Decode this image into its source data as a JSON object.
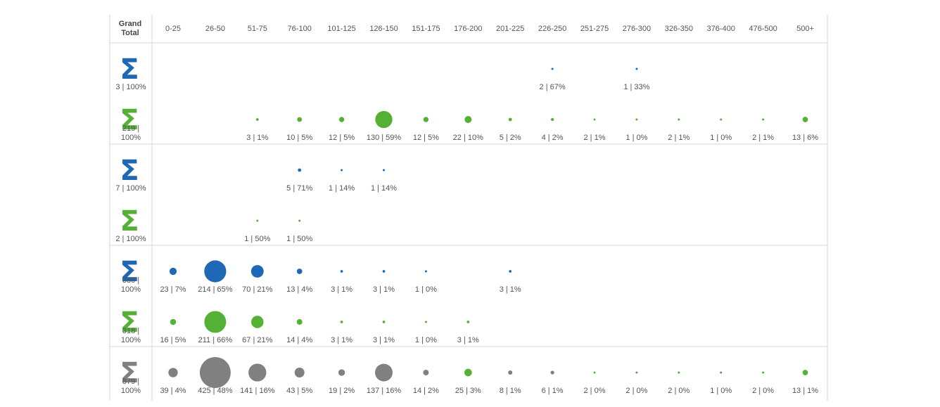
{
  "chart_data": {
    "type": "bubble-matrix",
    "corner_header": [
      "Grand",
      "Total"
    ],
    "columns": [
      "0-25",
      "26-50",
      "51-75",
      "76-100",
      "101-125",
      "126-150",
      "151-175",
      "176-200",
      "201-225",
      "226-250",
      "251-275",
      "276-300",
      "326-350",
      "376-400",
      "476-500",
      "500+"
    ],
    "colors": {
      "blue": "#1f68b5",
      "green": "#55b136",
      "gray": "#808080"
    },
    "groups": [
      {
        "rows": [
          {
            "color": "blue",
            "total_label": [
              "3 | 100%"
            ],
            "cells": [
              {
                "col": "226-250",
                "count": 2,
                "label": "2 | 67%"
              },
              {
                "col": "276-300",
                "count": 1,
                "label": "1 | 33%"
              }
            ]
          },
          {
            "color": "green",
            "total_label": [
              "219 |",
              "100%"
            ],
            "cells": [
              {
                "col": "51-75",
                "count": 3,
                "label": "3 | 1%"
              },
              {
                "col": "76-100",
                "count": 10,
                "label": "10 | 5%"
              },
              {
                "col": "101-125",
                "count": 12,
                "label": "12 | 5%"
              },
              {
                "col": "126-150",
                "count": 130,
                "label": "130 | 59%"
              },
              {
                "col": "151-175",
                "count": 12,
                "label": "12 | 5%"
              },
              {
                "col": "176-200",
                "count": 22,
                "label": "22 | 10%"
              },
              {
                "col": "201-225",
                "count": 5,
                "label": "5 | 2%"
              },
              {
                "col": "226-250",
                "count": 4,
                "label": "4 | 2%"
              },
              {
                "col": "251-275",
                "count": 2,
                "label": "2 | 1%"
              },
              {
                "col": "276-300",
                "count": 1,
                "label": "1 | 0%"
              },
              {
                "col": "326-350",
                "count": 2,
                "label": "2 | 1%"
              },
              {
                "col": "376-400",
                "count": 1,
                "label": "1 | 0%"
              },
              {
                "col": "476-500",
                "count": 2,
                "label": "2 | 1%"
              },
              {
                "col": "500+",
                "count": 13,
                "label": "13 | 6%"
              }
            ]
          }
        ]
      },
      {
        "rows": [
          {
            "color": "blue",
            "total_label": [
              "7 | 100%"
            ],
            "cells": [
              {
                "col": "76-100",
                "count": 5,
                "label": "5 | 71%"
              },
              {
                "col": "101-125",
                "count": 1,
                "label": "1 | 14%"
              },
              {
                "col": "126-150",
                "count": 1,
                "label": "1 | 14%"
              }
            ]
          },
          {
            "color": "green",
            "total_label": [
              "2 | 100%"
            ],
            "cells": [
              {
                "col": "51-75",
                "count": 1,
                "label": "1 | 50%"
              },
              {
                "col": "76-100",
                "count": 1,
                "label": "1 | 50%"
              }
            ]
          }
        ]
      },
      {
        "rows": [
          {
            "color": "blue",
            "total_label": [
              "330 |",
              "100%"
            ],
            "cells": [
              {
                "col": "0-25",
                "count": 23,
                "label": "23 | 7%"
              },
              {
                "col": "26-50",
                "count": 214,
                "label": "214 | 65%"
              },
              {
                "col": "51-75",
                "count": 70,
                "label": "70 | 21%"
              },
              {
                "col": "76-100",
                "count": 13,
                "label": "13 | 4%"
              },
              {
                "col": "101-125",
                "count": 3,
                "label": "3 | 1%"
              },
              {
                "col": "126-150",
                "count": 3,
                "label": "3 | 1%"
              },
              {
                "col": "151-175",
                "count": 1,
                "label": "1 | 0%"
              },
              {
                "col": "201-225",
                "count": 3,
                "label": "3 | 1%"
              }
            ]
          },
          {
            "color": "green",
            "total_label": [
              "318 |",
              "100%"
            ],
            "cells": [
              {
                "col": "0-25",
                "count": 16,
                "label": "16 | 5%"
              },
              {
                "col": "26-50",
                "count": 211,
                "label": "211 | 66%"
              },
              {
                "col": "51-75",
                "count": 67,
                "label": "67 | 21%"
              },
              {
                "col": "76-100",
                "count": 14,
                "label": "14 | 4%"
              },
              {
                "col": "101-125",
                "count": 3,
                "label": "3 | 1%"
              },
              {
                "col": "126-150",
                "count": 3,
                "label": "3 | 1%"
              },
              {
                "col": "151-175",
                "count": 1,
                "label": "1 | 0%"
              },
              {
                "col": "176-200",
                "count": 3,
                "label": "3 | 1%"
              }
            ]
          }
        ]
      },
      {
        "rows": [
          {
            "color": "gray",
            "total_label": [
              "879 |",
              "100%"
            ],
            "cells": [
              {
                "col": "0-25",
                "count": 39,
                "label": "39 | 4%",
                "color": "gray"
              },
              {
                "col": "26-50",
                "count": 425,
                "label": "425 | 48%",
                "color": "gray"
              },
              {
                "col": "51-75",
                "count": 141,
                "label": "141 | 16%",
                "color": "gray"
              },
              {
                "col": "76-100",
                "count": 43,
                "label": "43 | 5%",
                "color": "gray"
              },
              {
                "col": "101-125",
                "count": 19,
                "label": "19 | 2%",
                "color": "gray"
              },
              {
                "col": "126-150",
                "count": 137,
                "label": "137 | 16%",
                "color": "gray"
              },
              {
                "col": "151-175",
                "count": 14,
                "label": "14 | 2%",
                "color": "gray"
              },
              {
                "col": "176-200",
                "count": 25,
                "label": "25 | 3%",
                "color": "green"
              },
              {
                "col": "201-225",
                "count": 8,
                "label": "8 | 1%",
                "color": "gray"
              },
              {
                "col": "226-250",
                "count": 6,
                "label": "6 | 1%",
                "color": "gray"
              },
              {
                "col": "251-275",
                "count": 2,
                "label": "2 | 0%",
                "color": "green"
              },
              {
                "col": "276-300",
                "count": 2,
                "label": "2 | 0%",
                "color": "gray"
              },
              {
                "col": "326-350",
                "count": 2,
                "label": "2 | 0%",
                "color": "green"
              },
              {
                "col": "376-400",
                "count": 1,
                "label": "1 | 0%",
                "color": "gray"
              },
              {
                "col": "476-500",
                "count": 2,
                "label": "2 | 0%",
                "color": "green"
              },
              {
                "col": "500+",
                "count": 13,
                "label": "13 | 1%",
                "color": "green"
              }
            ]
          }
        ]
      }
    ]
  }
}
